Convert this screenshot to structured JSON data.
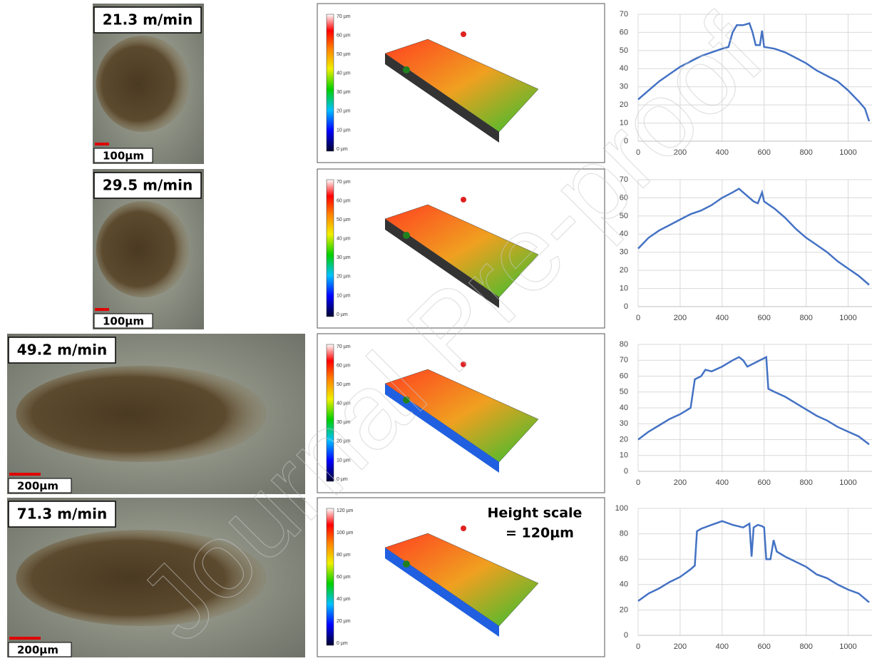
{
  "watermark": "Journal Pre-proof",
  "annotation": [
    "Height scale",
    "= 120µm"
  ],
  "rows": [
    {
      "speed": "21.3 m/min",
      "scale_bar": "100µm",
      "colorbar": [
        "70 µm",
        "60 µm",
        "50 µm",
        "40 µm",
        "30 µm",
        "20 µm",
        "10 µm",
        "0 µm"
      ]
    },
    {
      "speed": "29.5 m/min",
      "scale_bar": "100µm",
      "colorbar": [
        "70 µm",
        "60 µm",
        "50 µm",
        "40 µm",
        "30 µm",
        "20 µm",
        "10 µm",
        "0 µm"
      ]
    },
    {
      "speed": "49.2 m/min",
      "scale_bar": "200µm",
      "colorbar": [
        "70 µm",
        "60 µm",
        "50 µm",
        "40 µm",
        "30 µm",
        "20 µm",
        "10 µm",
        "0 µm"
      ]
    },
    {
      "speed": "71.3 m/min",
      "scale_bar": "200µm",
      "colorbar": [
        "120 µm",
        "100 µm",
        "80 µm",
        "60 µm",
        "40 µm",
        "20 µm",
        "0 µm"
      ]
    }
  ],
  "chart_data": [
    {
      "type": "line",
      "color": "#4472c4",
      "grid": true,
      "x": [
        0,
        50,
        100,
        150,
        200,
        250,
        300,
        350,
        400,
        430,
        450,
        470,
        500,
        530,
        545,
        560,
        580,
        590,
        600,
        650,
        700,
        750,
        800,
        850,
        900,
        950,
        1000,
        1050,
        1080,
        1100
      ],
      "values": [
        23,
        28,
        33,
        37,
        41,
        44,
        47,
        49,
        51,
        52,
        60,
        64,
        64,
        65,
        60,
        53,
        53,
        61,
        52,
        51,
        49,
        46,
        43,
        39,
        36,
        33,
        28,
        22,
        18,
        11
      ],
      "xlim": [
        0,
        1100
      ],
      "xticks": [
        0,
        200,
        400,
        600,
        800,
        1000
      ],
      "ylim": [
        0,
        70
      ],
      "yticks": [
        0,
        10,
        20,
        30,
        40,
        50,
        60,
        70
      ]
    },
    {
      "type": "line",
      "color": "#4472c4",
      "grid": true,
      "x": [
        0,
        50,
        100,
        150,
        200,
        250,
        300,
        350,
        400,
        450,
        480,
        500,
        530,
        550,
        570,
        590,
        600,
        650,
        700,
        750,
        800,
        850,
        900,
        950,
        1000,
        1050,
        1100
      ],
      "values": [
        32,
        38,
        42,
        45,
        48,
        51,
        53,
        56,
        60,
        63,
        65,
        63,
        60,
        58,
        57,
        63,
        58,
        54,
        49,
        43,
        38,
        34,
        30,
        25,
        21,
        17,
        12
      ],
      "xlim": [
        0,
        1100
      ],
      "xticks": [
        0,
        200,
        400,
        600,
        800,
        1000
      ],
      "ylim": [
        0,
        70
      ],
      "yticks": [
        0,
        10,
        20,
        30,
        40,
        50,
        60,
        70
      ]
    },
    {
      "type": "line",
      "color": "#4472c4",
      "grid": true,
      "x": [
        0,
        50,
        100,
        150,
        200,
        250,
        270,
        300,
        320,
        350,
        400,
        450,
        480,
        500,
        520,
        550,
        580,
        610,
        620,
        650,
        700,
        750,
        800,
        850,
        900,
        950,
        1000,
        1050,
        1100
      ],
      "values": [
        20,
        25,
        29,
        33,
        36,
        40,
        58,
        60,
        64,
        63,
        66,
        70,
        72,
        70,
        66,
        68,
        70,
        72,
        52,
        50,
        47,
        43,
        39,
        35,
        32,
        28,
        25,
        22,
        17
      ],
      "xlim": [
        0,
        1100
      ],
      "xticks": [
        0,
        200,
        400,
        600,
        800,
        1000
      ],
      "ylim": [
        0,
        80
      ],
      "yticks": [
        0,
        10,
        20,
        30,
        40,
        50,
        60,
        70,
        80
      ]
    },
    {
      "type": "line",
      "color": "#4472c4",
      "grid": true,
      "x": [
        0,
        50,
        100,
        150,
        200,
        250,
        270,
        280,
        300,
        350,
        400,
        450,
        500,
        530,
        540,
        550,
        570,
        590,
        600,
        610,
        630,
        645,
        660,
        700,
        750,
        800,
        850,
        900,
        950,
        1000,
        1050,
        1100
      ],
      "values": [
        27,
        33,
        37,
        42,
        46,
        52,
        55,
        82,
        84,
        87,
        90,
        87,
        85,
        88,
        62,
        85,
        87,
        86,
        85,
        60,
        60,
        75,
        66,
        62,
        58,
        54,
        48,
        45,
        40,
        36,
        33,
        26
      ],
      "xlim": [
        0,
        1100
      ],
      "xticks": [
        0,
        200,
        400,
        600,
        800,
        1000
      ],
      "ylim": [
        0,
        100
      ],
      "yticks": [
        0,
        20,
        40,
        60,
        80,
        100
      ]
    }
  ]
}
